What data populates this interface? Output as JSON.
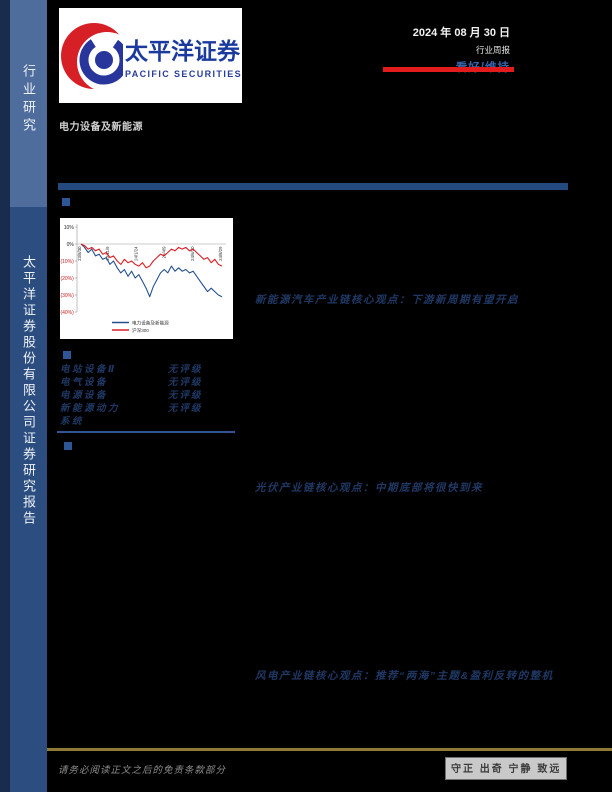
{
  "sidebar": {
    "top_label": "行业研究",
    "bottom_label": "太平洋证券股份有限公司证券研究报告",
    "top_color": "#4e6c9c",
    "bottom_color": "#2b4d7f"
  },
  "header": {
    "logo_cn": "太平洋证券",
    "logo_en": "PACIFIC SECURITIES",
    "date": "2024 年 08 月 30 日",
    "report_type": "行业周报",
    "rating": "看好/维持",
    "industry": "电力设备及新能源",
    "accent_red": "#e21c1c",
    "rating_blue": "#3765ab"
  },
  "chart_data": {
    "type": "line",
    "title": "",
    "xlabel": "",
    "ylabel": "",
    "ylim": [
      -40,
      10
    ],
    "grid": false,
    "legend_position": "bottom",
    "x_labels": [
      "23/8/30",
      "23/11/9",
      "24/1/24",
      "24/4/9",
      "24/6/20",
      "24/8/29"
    ],
    "y_ticks": [
      "10%",
      "0%",
      "(10%)",
      "(20%)",
      "(30%)",
      "(40%)"
    ],
    "y_tick_values": [
      10,
      0,
      -10,
      -20,
      -30,
      -40
    ],
    "negative_tick_color": "#d02020",
    "series": [
      {
        "name": "电力设备及新能源",
        "color": "#24508f",
        "values": [
          0,
          -2,
          -5,
          -3,
          -7,
          -6,
          -9,
          -8,
          -12,
          -10,
          -14,
          -17,
          -15,
          -19,
          -16,
          -20,
          -18,
          -22,
          -26,
          -31,
          -25,
          -21,
          -17,
          -15,
          -17,
          -13,
          -16,
          -14,
          -16,
          -15,
          -17,
          -16,
          -19,
          -22,
          -25,
          -28,
          -26,
          -28,
          -30,
          -31
        ]
      },
      {
        "name": "沪深300",
        "color": "#dd1d25",
        "values": [
          0,
          -1,
          -3,
          -2,
          -4,
          -3,
          -6,
          -5,
          -8,
          -7,
          -10,
          -12,
          -9,
          -11,
          -10,
          -12,
          -13,
          -11,
          -14,
          -13,
          -10,
          -8,
          -6,
          -7,
          -5,
          -3,
          -4,
          -2,
          -3,
          -2,
          -4,
          -3,
          -5,
          -7,
          -9,
          -8,
          -11,
          -9,
          -12,
          -13
        ]
      }
    ]
  },
  "ratings": {
    "rows": [
      {
        "name": "电站设备Ⅱ",
        "rating": "无评级"
      },
      {
        "name": "电气设备",
        "rating": "无评级"
      },
      {
        "name": "电源设备",
        "rating": "无评级"
      },
      {
        "name": "新能源动力系统",
        "rating": "无评级"
      }
    ]
  },
  "sections": [
    {
      "title": "新能源汽车产业链核心观点：下游新周期有望开启"
    },
    {
      "title": "光伏产业链核心观点：中期底部将很快到来"
    },
    {
      "title": "风电产业链核心观点：推荐“两海”主题&盈利反转的整机"
    }
  ],
  "footer": {
    "disclaimer": "请务必阅读正文之后的免责条款部分",
    "motto": "守正 出奇 宁静 致远"
  }
}
